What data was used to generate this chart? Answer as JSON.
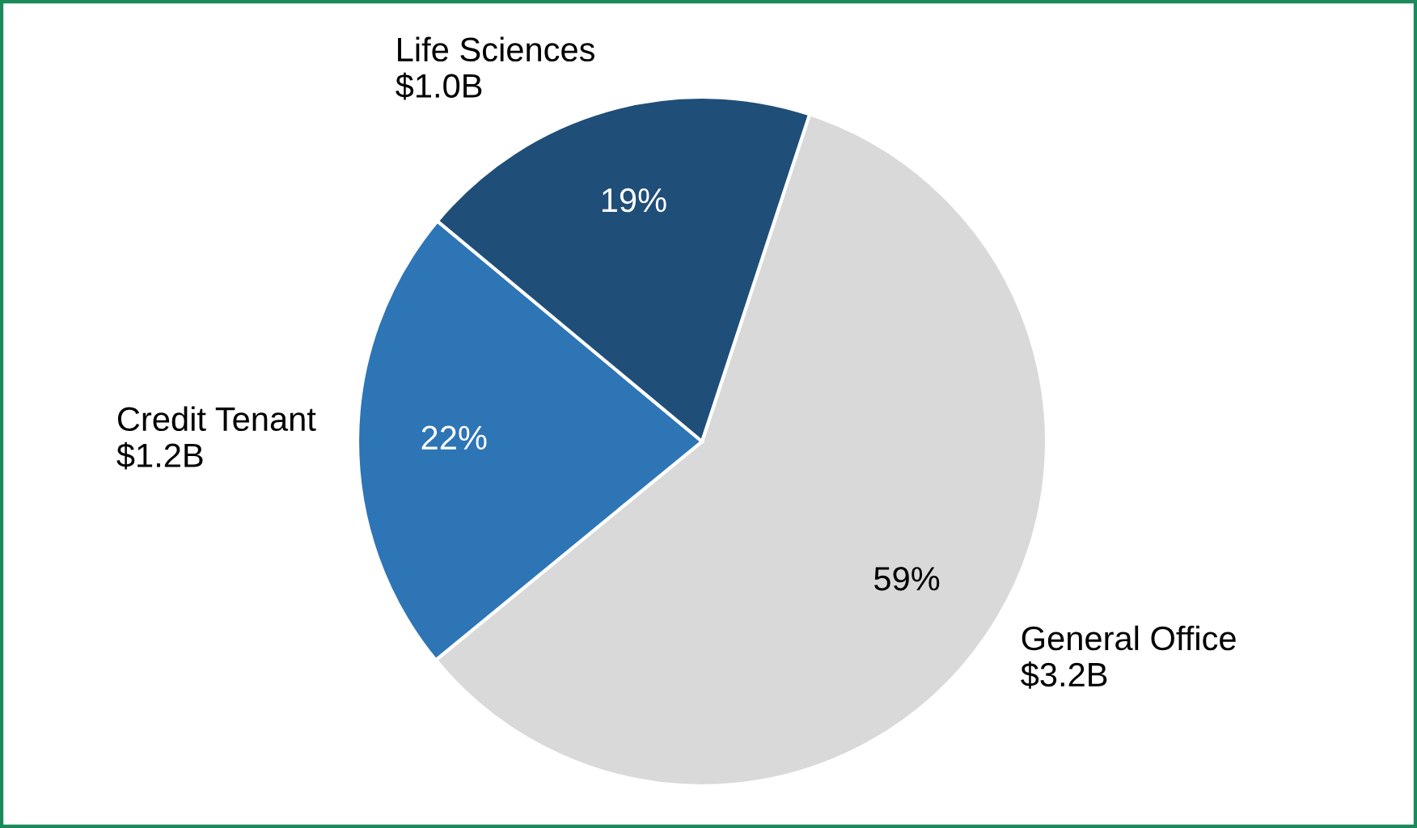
{
  "chart_data": {
    "type": "pie",
    "categories": [
      "General Office\n$3.2B",
      "Credit Tenant\n$1.2B",
      "Life Sciences\n$1.0B"
    ],
    "values": [
      59,
      22,
      19
    ],
    "colors": [
      "#d9d9d9",
      "#2e75b6",
      "#1f4e79"
    ],
    "value_labels": [
      "59%",
      "22%",
      "19%"
    ]
  }
}
